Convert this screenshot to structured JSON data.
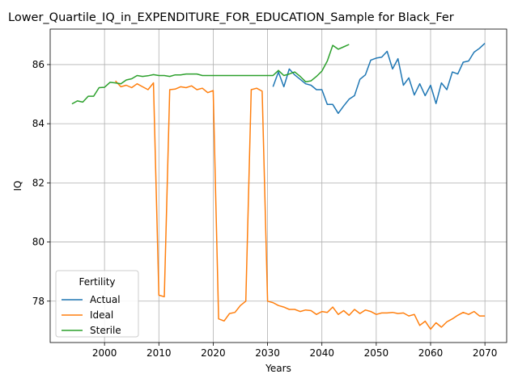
{
  "chart_data": {
    "type": "line",
    "title": "Lower_Quartile_IQ_in_EXPENDITURE_FOR_EDUCATION_Sample for Black_Fer",
    "xlabel": "Years",
    "ylabel": "IQ",
    "xlim": [
      1990,
      2074
    ],
    "ylim": [
      76.6,
      87.2
    ],
    "xticks": [
      2000,
      2010,
      2020,
      2030,
      2040,
      2050,
      2060,
      2070
    ],
    "yticks": [
      78,
      80,
      82,
      84,
      86
    ],
    "grid": true,
    "legend": {
      "title": "Fertility",
      "placement": "lower-left"
    },
    "series": [
      {
        "name": "Actual",
        "color": "#1f77b4",
        "x": [
          2031,
          2032,
          2033,
          2034,
          2035,
          2036,
          2037,
          2038,
          2039,
          2040,
          2041,
          2042,
          2043,
          2044,
          2045,
          2046,
          2047,
          2048,
          2049,
          2050,
          2051,
          2052,
          2053,
          2054,
          2055,
          2056,
          2057,
          2058,
          2059,
          2060,
          2061,
          2062,
          2063,
          2064,
          2065,
          2066,
          2067,
          2068,
          2069,
          2070
        ],
        "values": [
          85.25,
          85.75,
          85.25,
          85.85,
          85.65,
          85.5,
          85.35,
          85.3,
          85.15,
          85.15,
          84.65,
          84.65,
          84.35,
          84.6,
          84.83,
          84.95,
          85.5,
          85.65,
          86.15,
          86.22,
          86.25,
          86.45,
          85.85,
          86.2,
          85.3,
          85.55,
          84.97,
          85.35,
          84.95,
          85.3,
          84.68,
          85.38,
          85.15,
          85.75,
          85.68,
          86.08,
          86.12,
          86.42,
          86.55,
          86.72
        ]
      },
      {
        "name": "Ideal",
        "color": "#ff7f0e",
        "x": [
          2002,
          2003,
          2004,
          2005,
          2006,
          2007,
          2008,
          2009,
          2010,
          2011,
          2012,
          2013,
          2014,
          2015,
          2016,
          2017,
          2018,
          2019,
          2020,
          2021,
          2022,
          2023,
          2024,
          2025,
          2026,
          2027,
          2028,
          2029,
          2030,
          2031,
          2032,
          2033,
          2034,
          2035,
          2036,
          2037,
          2038,
          2039,
          2040,
          2041,
          2042,
          2043,
          2044,
          2045,
          2046,
          2047,
          2048,
          2049,
          2050,
          2051,
          2052,
          2053,
          2054,
          2055,
          2056,
          2057,
          2058,
          2059,
          2060,
          2061,
          2062,
          2063,
          2064,
          2065,
          2066,
          2067,
          2068,
          2069,
          2070
        ],
        "values": [
          85.45,
          85.25,
          85.3,
          85.22,
          85.35,
          85.25,
          85.15,
          85.38,
          78.2,
          78.15,
          85.15,
          85.17,
          85.25,
          85.22,
          85.28,
          85.15,
          85.2,
          85.05,
          85.12,
          77.4,
          77.33,
          77.58,
          77.62,
          77.85,
          78.0,
          85.15,
          85.2,
          85.1,
          78.0,
          77.95,
          77.85,
          77.8,
          77.72,
          77.72,
          77.65,
          77.7,
          77.68,
          77.55,
          77.65,
          77.62,
          77.8,
          77.55,
          77.68,
          77.52,
          77.72,
          77.58,
          77.7,
          77.65,
          77.55,
          77.6,
          77.6,
          77.62,
          77.58,
          77.6,
          77.5,
          77.55,
          77.18,
          77.32,
          77.05,
          77.27,
          77.12,
          77.3,
          77.4,
          77.52,
          77.62,
          77.55,
          77.65,
          77.5,
          77.5
        ]
      },
      {
        "name": "Sterile",
        "color": "#2ca02c",
        "x": [
          1994,
          1995,
          1996,
          1997,
          1998,
          1999,
          2000,
          2001,
          2002,
          2003,
          2004,
          2005,
          2006,
          2007,
          2008,
          2009,
          2010,
          2011,
          2012,
          2013,
          2014,
          2015,
          2016,
          2017,
          2018,
          2019,
          2020,
          2021,
          2022,
          2023,
          2024,
          2025,
          2026,
          2027,
          2028,
          2029,
          2030,
          2031,
          2032,
          2033,
          2034,
          2035,
          2036,
          2037,
          2038,
          2039,
          2040,
          2041,
          2042,
          2043,
          2044,
          2045
        ],
        "values": [
          84.67,
          84.77,
          84.73,
          84.93,
          84.93,
          85.22,
          85.23,
          85.4,
          85.38,
          85.35,
          85.48,
          85.52,
          85.63,
          85.6,
          85.62,
          85.66,
          85.63,
          85.63,
          85.6,
          85.65,
          85.65,
          85.68,
          85.68,
          85.68,
          85.63,
          85.63,
          85.63,
          85.63,
          85.63,
          85.63,
          85.63,
          85.63,
          85.63,
          85.63,
          85.63,
          85.63,
          85.63,
          85.63,
          85.8,
          85.63,
          85.68,
          85.75,
          85.6,
          85.42,
          85.45,
          85.6,
          85.78,
          86.12,
          86.65,
          86.52,
          86.6,
          86.68
        ]
      }
    ]
  }
}
